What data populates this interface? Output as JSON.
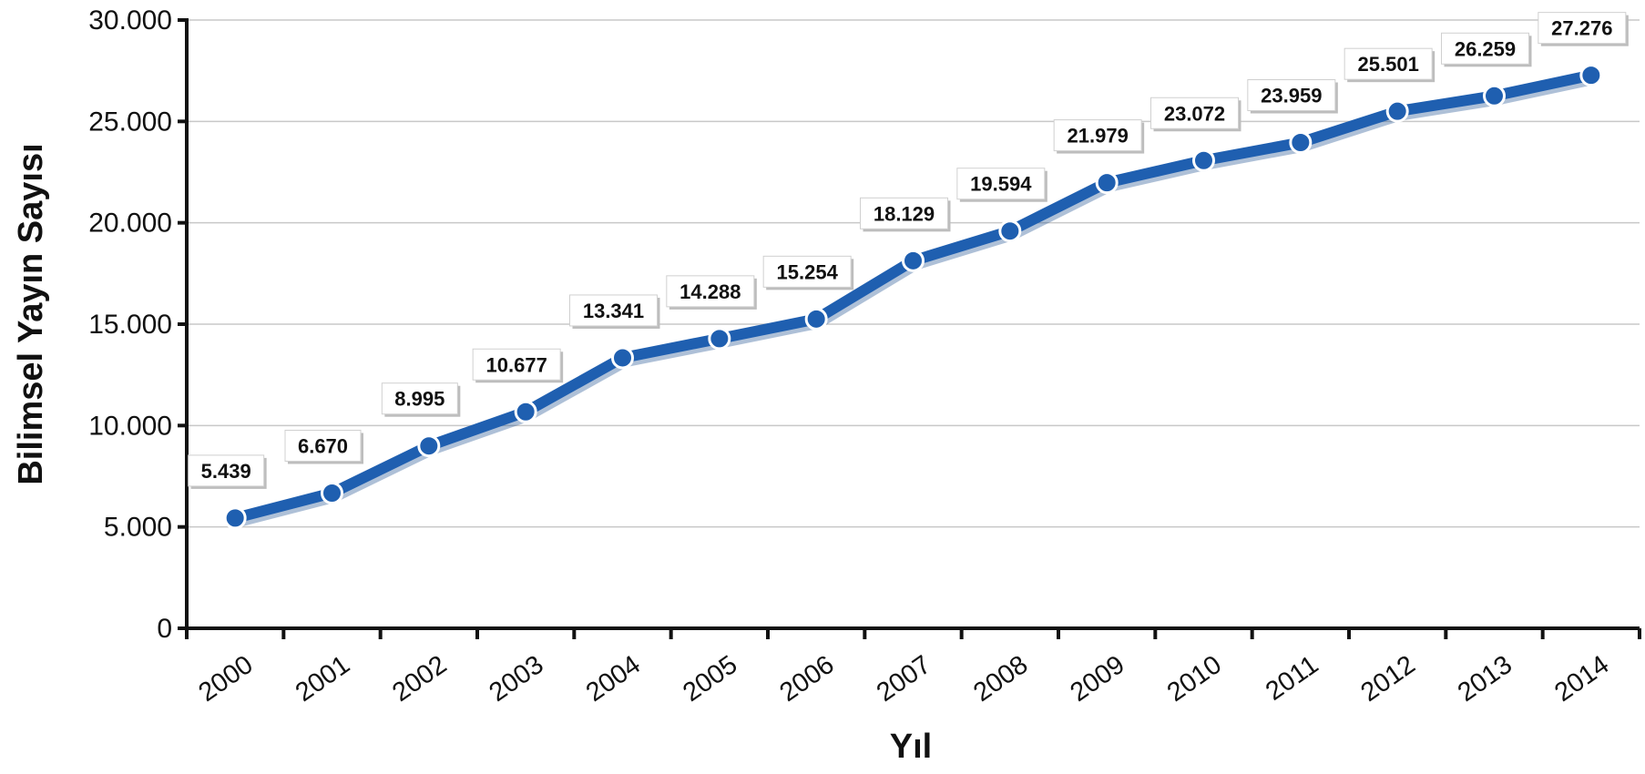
{
  "chart_data": {
    "type": "line",
    "xlabel": "Yıl",
    "ylabel": "Bilimsel Yayın Sayısı",
    "ylim": [
      0,
      30000
    ],
    "y_ticks": [
      {
        "value": 0,
        "label": "0"
      },
      {
        "value": 5000,
        "label": "5.000"
      },
      {
        "value": 10000,
        "label": "10.000"
      },
      {
        "value": 15000,
        "label": "15.000"
      },
      {
        "value": 20000,
        "label": "20.000"
      },
      {
        "value": 25000,
        "label": "25.000"
      },
      {
        "value": 30000,
        "label": "30.000"
      }
    ],
    "grid": true,
    "categories": [
      "2000",
      "2001",
      "2002",
      "2003",
      "2004",
      "2005",
      "2006",
      "2007",
      "2008",
      "2009",
      "2010",
      "2011",
      "2012",
      "2013",
      "2014"
    ],
    "values": [
      5439,
      6670,
      8995,
      10677,
      13341,
      14288,
      15254,
      18129,
      19594,
      21979,
      23072,
      23959,
      25501,
      26259,
      27276
    ],
    "data_labels": [
      "5.439",
      "6.670",
      "8.995",
      "10.677",
      "13.341",
      "14.288",
      "15.254",
      "18.129",
      "19.594",
      "21.979",
      "23.072",
      "23.959",
      "25.501",
      "26.259",
      "27.276"
    ],
    "colors": {
      "line": "#1f5fb0",
      "marker_stroke": "#ffffff",
      "grid": "#c8c8c8",
      "axis": "#111111"
    }
  }
}
